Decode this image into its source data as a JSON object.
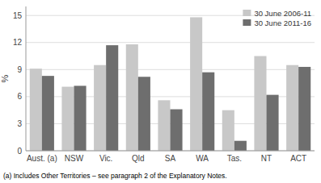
{
  "chart_data": {
    "type": "bar",
    "categories": [
      "Aust. (a)",
      "NSW",
      "Vic.",
      "Qld",
      "SA",
      "WA",
      "Tas.",
      "NT",
      "ACT"
    ],
    "series": [
      {
        "name": "30 June 2006-11",
        "color": "#c8c8c8",
        "values": [
          9.1,
          7.1,
          9.5,
          11.8,
          5.6,
          14.8,
          4.5,
          10.5,
          9.5
        ]
      },
      {
        "name": "30 June 2011-16",
        "color": "#6e6e6e",
        "values": [
          8.3,
          7.2,
          11.7,
          8.2,
          4.6,
          8.7,
          1.1,
          6.2,
          9.3
        ]
      }
    ],
    "ylabel": "%",
    "ylim": [
      0,
      16
    ],
    "yticks": [
      0,
      3,
      6,
      9,
      12,
      15
    ],
    "grid": true,
    "legend": "upper right",
    "footnote": "(a) Includes Other Territories – see paragraph 2 of the Explanatory Notes."
  }
}
